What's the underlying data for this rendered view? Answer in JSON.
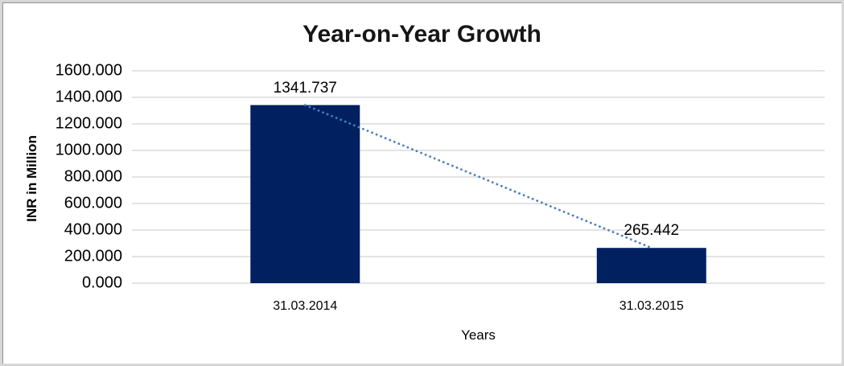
{
  "frame": {
    "background": "#ffffff",
    "border_outer_color": "#d7d7d7",
    "border_inner_color": "#8f8f8f"
  },
  "chart_data": {
    "type": "bar",
    "title": "Year-on-Year Growth",
    "categories": [
      "31.03.2014",
      "31.03.2015"
    ],
    "values": [
      1341.737,
      265.442
    ],
    "data_labels": [
      "1341.737",
      "265.442"
    ],
    "xlabel": "Years",
    "ylabel": "INR in Million",
    "ylim": [
      0,
      1600
    ],
    "ytick_step": 200,
    "ytick_labels": [
      "0.000",
      "200.000",
      "400.000",
      "600.000",
      "800.000",
      "1000.000",
      "1200.000",
      "1400.000",
      "1600.000"
    ],
    "grid": "horizontal-only",
    "legend": false,
    "bar_color": "#002060",
    "gridline_color": "#c9c9c9",
    "text_color": "#000000",
    "trendline": {
      "style": "dotted",
      "color": "#4a7ebb",
      "connects_bar_tops": [
        1341.737,
        265.442
      ]
    }
  }
}
